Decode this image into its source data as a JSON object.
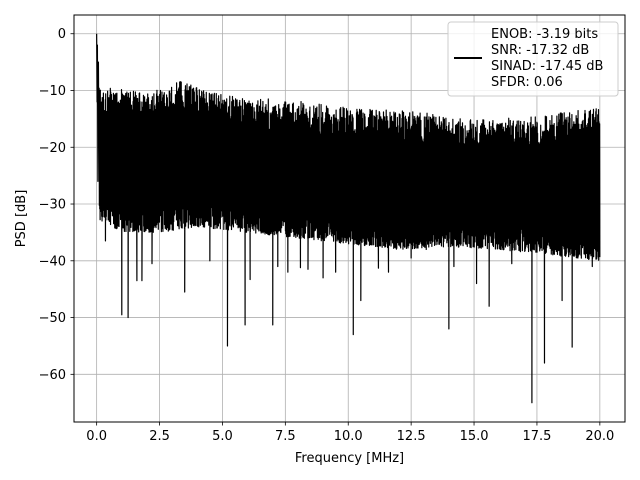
{
  "chart_data": {
    "type": "line",
    "title": "",
    "xlabel": "Frequency [MHz]",
    "ylabel": "PSD [dB]",
    "xlim": [
      -0.9,
      21.0
    ],
    "ylim": [
      -68.4,
      3.3
    ],
    "xticks": [
      0.0,
      2.5,
      5.0,
      7.5,
      10.0,
      12.5,
      15.0,
      17.5,
      20.0
    ],
    "xtick_labels": [
      "0.0",
      "2.5",
      "5.0",
      "7.5",
      "10.0",
      "12.5",
      "15.0",
      "17.5",
      "20.0"
    ],
    "yticks": [
      0,
      -10,
      -20,
      -30,
      -40,
      -50,
      -60
    ],
    "ytick_labels": [
      "0",
      "−10",
      "−20",
      "−30",
      "−40",
      "−50",
      "−60"
    ],
    "grid": true,
    "legend_position": "top-right",
    "legend_lines": [
      "ENOB: -3.19 bits",
      "SNR: -17.32 dB",
      "SINAD: -17.45 dB",
      "SFDR: 0.06"
    ],
    "series_color": "#000000",
    "x_range": [
      0.0,
      20.0
    ],
    "peak": {
      "x": 0.0,
      "y": 0.0
    },
    "noise_floor_upper": [
      [
        0.3,
        -9.5
      ],
      [
        1.0,
        -9.8
      ],
      [
        2.0,
        -10.5
      ],
      [
        3.3,
        -8.3
      ],
      [
        4.5,
        -10.3
      ],
      [
        6.0,
        -11.5
      ],
      [
        7.5,
        -11.5
      ],
      [
        9.0,
        -12.5
      ],
      [
        10.5,
        -13.3
      ],
      [
        12.5,
        -13.5
      ],
      [
        14.5,
        -15.0
      ],
      [
        16.0,
        -15.0
      ],
      [
        17.5,
        -14.5
      ],
      [
        19.0,
        -13.5
      ],
      [
        20.0,
        -13.0
      ]
    ],
    "noise_floor_lower": [
      [
        0.3,
        -33.0
      ],
      [
        1.0,
        -35.0
      ],
      [
        2.5,
        -35.0
      ],
      [
        4.0,
        -34.0
      ],
      [
        6.0,
        -35.0
      ],
      [
        8.0,
        -36.0
      ],
      [
        10.0,
        -37.0
      ],
      [
        12.0,
        -38.0
      ],
      [
        14.0,
        -37.5
      ],
      [
        16.0,
        -38.0
      ],
      [
        18.0,
        -39.0
      ],
      [
        20.0,
        -40.0
      ]
    ],
    "deep_dips": [
      [
        0.35,
        -36.5
      ],
      [
        1.0,
        -49.5
      ],
      [
        1.25,
        -50.0
      ],
      [
        1.6,
        -43.5
      ],
      [
        1.8,
        -43.5
      ],
      [
        2.2,
        -40.5
      ],
      [
        3.5,
        -45.5
      ],
      [
        4.5,
        -40.0
      ],
      [
        5.2,
        -55.0
      ],
      [
        5.9,
        -51.3
      ],
      [
        6.1,
        -43.3
      ],
      [
        7.0,
        -51.3
      ],
      [
        7.2,
        -41.0
      ],
      [
        7.6,
        -42.0
      ],
      [
        8.1,
        -41.2
      ],
      [
        8.4,
        -41.5
      ],
      [
        9.0,
        -43.0
      ],
      [
        9.5,
        -42.0
      ],
      [
        10.2,
        -53.0
      ],
      [
        10.5,
        -47.0
      ],
      [
        11.2,
        -41.3
      ],
      [
        11.6,
        -42.0
      ],
      [
        12.5,
        -39.5
      ],
      [
        13.1,
        -38.0
      ],
      [
        14.0,
        -52.0
      ],
      [
        14.2,
        -41.0
      ],
      [
        15.1,
        -44.0
      ],
      [
        15.6,
        -48.0
      ],
      [
        16.5,
        -40.5
      ],
      [
        17.3,
        -65.0
      ],
      [
        17.8,
        -58.0
      ],
      [
        18.5,
        -47.0
      ],
      [
        18.9,
        -55.2
      ],
      [
        19.7,
        -41.0
      ]
    ]
  }
}
